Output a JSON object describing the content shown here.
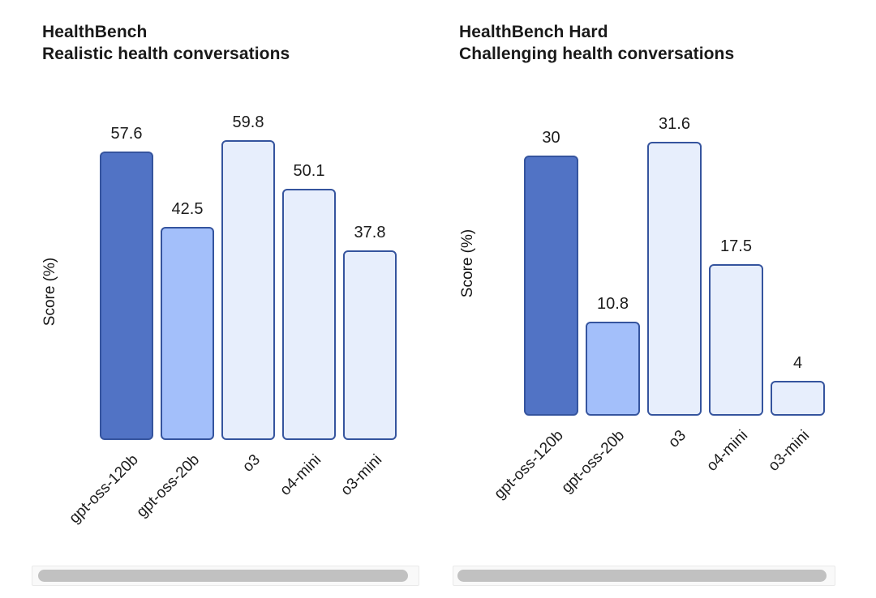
{
  "colors": {
    "bar_primary_fill": "#5173c5",
    "bar_secondary_fill": "#a3bffa",
    "bar_light_fill": "#e7eefc",
    "bar_border": "#35549e",
    "scrollbar_track": "#f9f9f9",
    "scrollbar_track_border": "#e9e9e9",
    "scrollbar_thumb": "#c1c1c1",
    "title_text": "#191919",
    "label_text": "#1c1c1c"
  },
  "chart_data": [
    {
      "type": "bar",
      "title": "HealthBench",
      "subtitle": "Realistic health conversations",
      "ylabel": "Score (%)",
      "xlabel": "",
      "categories": [
        "gpt-oss-120b",
        "gpt-oss-20b",
        "o3",
        "o4-mini",
        "o3-mini"
      ],
      "values": [
        57.6,
        42.5,
        59.8,
        50.1,
        37.8
      ],
      "value_labels": [
        "57.6",
        "42.5",
        "59.8",
        "50.1",
        "37.8"
      ],
      "ylim": [
        0,
        63
      ],
      "grid": false,
      "legend": "none",
      "bar_fill_colors": [
        "#5173c5",
        "#a3bffa",
        "#e7eefc",
        "#e7eefc",
        "#e7eefc"
      ],
      "bar_border_color": "#35549e"
    },
    {
      "type": "bar",
      "title": "HealthBench Hard",
      "subtitle": "Challenging health conversations",
      "ylabel": "Score (%)",
      "xlabel": "",
      "categories": [
        "gpt-oss-120b",
        "gpt-oss-20b",
        "o3",
        "o4-mini",
        "o3-mini"
      ],
      "values": [
        30,
        10.8,
        31.6,
        17.5,
        4
      ],
      "value_labels": [
        "30",
        "10.8",
        "31.6",
        "17.5",
        "4"
      ],
      "ylim": [
        0,
        33.5
      ],
      "grid": false,
      "legend": "none",
      "bar_fill_colors": [
        "#5173c5",
        "#a3bffa",
        "#e7eefc",
        "#e7eefc",
        "#e7eefc"
      ],
      "bar_border_color": "#35549e"
    }
  ]
}
